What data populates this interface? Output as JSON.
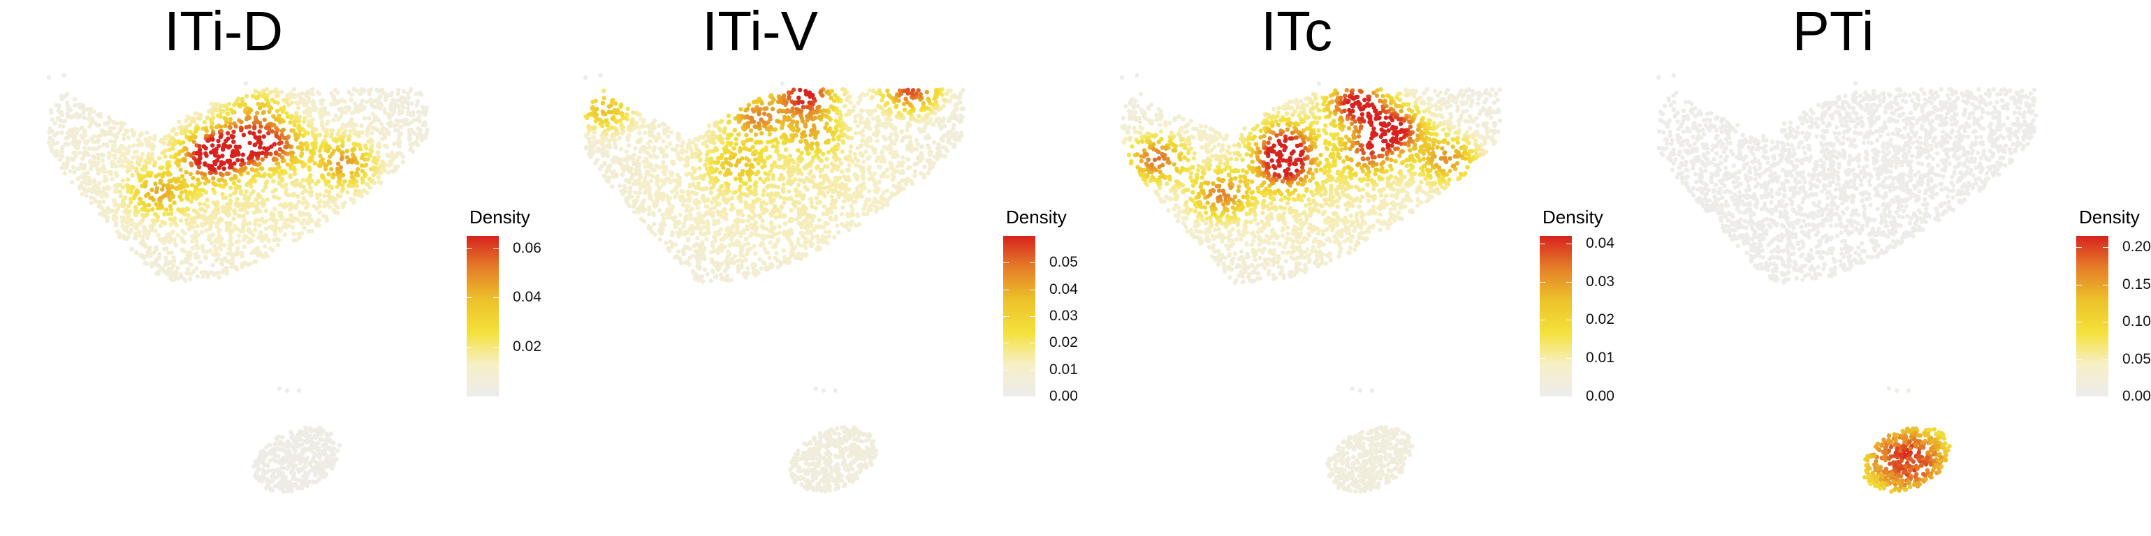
{
  "chart_data": [
    {
      "type": "scatter",
      "title": "ITi-D",
      "legend_title": "Density",
      "legend_placement": "right",
      "colorbar": {
        "min": 0.0,
        "max": 0.065,
        "ticks": [
          "0.02",
          "0.04",
          "0.06"
        ],
        "tick_values": [
          0.02,
          0.04,
          0.06
        ]
      },
      "hotspots": [
        {
          "x": 0.43,
          "y": 0.66,
          "density": 0.062
        },
        {
          "x": 0.5,
          "y": 0.72,
          "density": 0.045
        },
        {
          "x": 0.6,
          "y": 0.72,
          "density": 0.04
        },
        {
          "x": 0.78,
          "y": 0.63,
          "density": 0.035
        },
        {
          "x": 0.29,
          "y": 0.48,
          "density": 0.03
        },
        {
          "x": 0.55,
          "y": 0.88,
          "density": 0.025
        }
      ],
      "lower_cluster_density": 0.002
    },
    {
      "type": "scatter",
      "title": "ITi-V",
      "legend_title": "Density",
      "legend_placement": "right",
      "colorbar": {
        "min": 0.0,
        "max": 0.06,
        "ticks": [
          "0.00",
          "0.01",
          "0.02",
          "0.03",
          "0.04",
          "0.05"
        ],
        "tick_values": [
          0,
          0.01,
          0.02,
          0.03,
          0.04,
          0.05
        ]
      },
      "hotspots": [
        {
          "x": 0.58,
          "y": 0.98,
          "density": 0.055
        },
        {
          "x": 0.86,
          "y": 1.0,
          "density": 0.05
        },
        {
          "x": 0.45,
          "y": 0.86,
          "density": 0.035
        },
        {
          "x": 0.05,
          "y": 0.9,
          "density": 0.03
        },
        {
          "x": 0.4,
          "y": 0.62,
          "density": 0.02
        },
        {
          "x": 0.6,
          "y": 0.78,
          "density": 0.025
        }
      ],
      "lower_cluster_density": 0.004
    },
    {
      "type": "scatter",
      "title": "ITc",
      "legend_title": "Density",
      "legend_placement": "right",
      "colorbar": {
        "min": 0.0,
        "max": 0.042,
        "ticks": [
          "0.00",
          "0.01",
          "0.02",
          "0.03",
          "0.04"
        ],
        "tick_values": [
          0,
          0.01,
          0.02,
          0.03,
          0.04
        ]
      },
      "hotspots": [
        {
          "x": 0.62,
          "y": 0.93,
          "density": 0.041
        },
        {
          "x": 0.72,
          "y": 0.8,
          "density": 0.038
        },
        {
          "x": 0.43,
          "y": 0.72,
          "density": 0.032
        },
        {
          "x": 0.43,
          "y": 0.6,
          "density": 0.03
        },
        {
          "x": 0.09,
          "y": 0.65,
          "density": 0.03
        },
        {
          "x": 0.65,
          "y": 0.68,
          "density": 0.025
        },
        {
          "x": 0.86,
          "y": 0.65,
          "density": 0.025
        },
        {
          "x": 0.26,
          "y": 0.47,
          "density": 0.025
        }
      ],
      "lower_cluster_density": 0.003
    },
    {
      "type": "scatter",
      "title": "PTi",
      "legend_title": "Density",
      "legend_placement": "right",
      "colorbar": {
        "min": 0.0,
        "max": 0.215,
        "ticks": [
          "0.00",
          "0.05",
          "0.10",
          "0.15",
          "0.20"
        ],
        "tick_values": [
          0,
          0.05,
          0.1,
          0.15,
          0.2
        ]
      },
      "hotspots": [],
      "lower_cluster_density": 0.2
    }
  ]
}
